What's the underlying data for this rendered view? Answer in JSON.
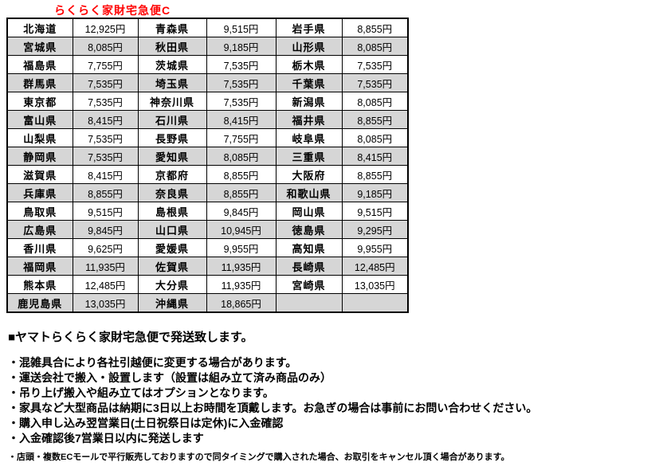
{
  "title": "らくらく家財宅急便C",
  "colors": {
    "title_red": "#ff0000",
    "row_gray": "#d6d6d6",
    "border_black": "#000000",
    "background": "#ffffff"
  },
  "table": {
    "columns_per_row": [
      "prefecture",
      "price",
      "prefecture",
      "price",
      "prefecture",
      "price"
    ],
    "rows": [
      [
        "北海道",
        "12,925円",
        "青森県",
        "9,515円",
        "岩手県",
        "8,855円"
      ],
      [
        "宮城県",
        "8,085円",
        "秋田県",
        "9,185円",
        "山形県",
        "8,085円"
      ],
      [
        "福島県",
        "7,755円",
        "茨城県",
        "7,535円",
        "栃木県",
        "7,535円"
      ],
      [
        "群馬県",
        "7,535円",
        "埼玉県",
        "7,535円",
        "千葉県",
        "7,535円"
      ],
      [
        "東京都",
        "7,535円",
        "神奈川県",
        "7,535円",
        "新潟県",
        "8,085円"
      ],
      [
        "富山県",
        "8,415円",
        "石川県",
        "8,415円",
        "福井県",
        "8,855円"
      ],
      [
        "山梨県",
        "7,535円",
        "長野県",
        "7,755円",
        "岐阜県",
        "8,085円"
      ],
      [
        "静岡県",
        "7,535円",
        "愛知県",
        "8,085円",
        "三重県",
        "8,415円"
      ],
      [
        "滋賀県",
        "8,415円",
        "京都府",
        "8,855円",
        "大阪府",
        "8,855円"
      ],
      [
        "兵庫県",
        "8,855円",
        "奈良県",
        "8,855円",
        "和歌山県",
        "9,185円"
      ],
      [
        "鳥取県",
        "9,515円",
        "島根県",
        "9,845円",
        "岡山県",
        "9,515円"
      ],
      [
        "広島県",
        "9,845円",
        "山口県",
        "10,945円",
        "徳島県",
        "9,295円"
      ],
      [
        "香川県",
        "9,625円",
        "愛媛県",
        "9,955円",
        "高知県",
        "9,955円"
      ],
      [
        "福岡県",
        "11,935円",
        "佐賀県",
        "11,935円",
        "長崎県",
        "12,485円"
      ],
      [
        "熊本県",
        "12,485円",
        "大分県",
        "11,935円",
        "宮崎県",
        "13,035円"
      ],
      [
        "鹿児島県",
        "13,035円",
        "沖縄県",
        "18,865円",
        "",
        ""
      ]
    ]
  },
  "notes": {
    "heading": "■ヤマトらくらく家財宅急便で発送致します。",
    "bullets": [
      "・混雑具合により各社引越便に変更する場合があります。",
      "・運送会社で搬入・設置します（設置は組み立て済み商品のみ）",
      "・吊り上げ搬入や組み立てはオプションとなります。",
      "・家具など大型商品は納期に3日以上お時間を頂戴します。お急ぎの場合は事前にお問い合わせください。",
      "・購入申し込み翌営業日(土日祝祭日は定休)に入金確認",
      "・入金確認後7営業日以内に発送します"
    ],
    "small_note": "・店頭・複数ECモールで平行販売しておりますので同タイミングで購入された場合、お取引をキャンセル頂く場合があります。"
  }
}
